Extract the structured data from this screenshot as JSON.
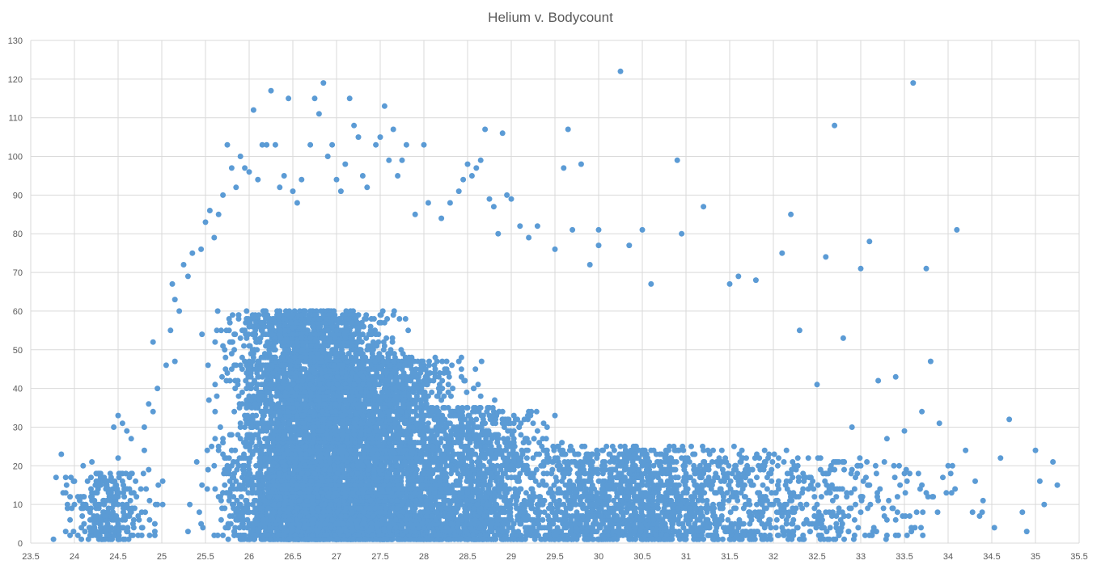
{
  "chart_data": {
    "type": "scatter",
    "title": "Helium v. Bodycount",
    "xlabel": "",
    "ylabel": "",
    "xlim": [
      23.5,
      35.5
    ],
    "ylim": [
      0,
      130
    ],
    "x_ticks": [
      23.5,
      24,
      24.5,
      25,
      25.5,
      26,
      26.5,
      27,
      27.5,
      28,
      28.5,
      29,
      29.5,
      30,
      30.5,
      31,
      31.5,
      32,
      32.5,
      33,
      33.5,
      34,
      34.5,
      35,
      35.5
    ],
    "y_ticks": [
      0,
      10,
      20,
      30,
      40,
      50,
      60,
      70,
      80,
      90,
      100,
      110,
      120,
      130
    ],
    "x_tick_labels": [
      "23.5",
      "24",
      "24.5",
      "25",
      "25.5",
      "26",
      "26.5",
      "27",
      "27.5",
      "28",
      "28.5",
      "29",
      "29.5",
      "30",
      "30.5",
      "31",
      "31.5",
      "32",
      "32.5",
      "33",
      "33.5",
      "34",
      "34.5",
      "35",
      "35.5"
    ],
    "y_tick_labels": [
      "0",
      "10",
      "20",
      "30",
      "40",
      "50",
      "60",
      "70",
      "80",
      "90",
      "100",
      "110",
      "120",
      "130"
    ],
    "grid": true,
    "legend": "none",
    "marker_color": "#5B9BD5",
    "gridline_color": "#D9D9D9",
    "series": [
      {
        "points": [
          [
            23.85,
            23
          ],
          [
            23.9,
            17
          ],
          [
            23.9,
            13
          ],
          [
            23.92,
            10
          ],
          [
            23.95,
            6
          ],
          [
            23.9,
            3
          ],
          [
            23.95,
            2
          ],
          [
            24.1,
            20
          ],
          [
            24.15,
            16
          ],
          [
            24.2,
            21
          ],
          [
            24.25,
            18
          ],
          [
            24.3,
            18
          ],
          [
            24.1,
            12
          ],
          [
            24.15,
            9
          ],
          [
            24.2,
            6
          ],
          [
            24.3,
            4
          ],
          [
            24.35,
            3
          ],
          [
            24.45,
            30
          ],
          [
            24.5,
            33
          ],
          [
            24.55,
            31
          ],
          [
            24.6,
            29
          ],
          [
            24.65,
            27
          ],
          [
            24.5,
            22
          ],
          [
            24.55,
            18
          ],
          [
            24.6,
            14
          ],
          [
            24.45,
            10
          ],
          [
            24.5,
            6
          ],
          [
            24.6,
            3
          ],
          [
            24.8,
            30
          ],
          [
            24.85,
            36
          ],
          [
            24.9,
            52
          ],
          [
            24.9,
            34
          ],
          [
            24.95,
            40
          ],
          [
            24.8,
            24
          ],
          [
            24.85,
            19
          ],
          [
            25.05,
            46
          ],
          [
            25.1,
            55
          ],
          [
            25.12,
            67
          ],
          [
            25.15,
            63
          ],
          [
            25.2,
            60
          ],
          [
            25.25,
            72
          ],
          [
            25.3,
            69
          ],
          [
            25.35,
            75
          ],
          [
            25.45,
            76
          ],
          [
            25.5,
            83
          ],
          [
            25.55,
            86
          ],
          [
            25.6,
            79
          ],
          [
            25.65,
            85
          ],
          [
            25.7,
            90
          ],
          [
            25.75,
            103
          ],
          [
            25.8,
            97
          ],
          [
            25.85,
            92
          ],
          [
            25.9,
            100
          ],
          [
            25.95,
            97
          ],
          [
            26.0,
            96
          ],
          [
            26.05,
            112
          ],
          [
            26.1,
            94
          ],
          [
            26.15,
            103
          ],
          [
            26.2,
            103
          ],
          [
            26.25,
            117
          ],
          [
            26.3,
            103
          ],
          [
            26.35,
            92
          ],
          [
            26.4,
            95
          ],
          [
            26.45,
            115
          ],
          [
            26.5,
            91
          ],
          [
            26.55,
            88
          ],
          [
            26.6,
            94
          ],
          [
            26.7,
            103
          ],
          [
            26.75,
            115
          ],
          [
            26.8,
            111
          ],
          [
            26.85,
            119
          ],
          [
            26.9,
            100
          ],
          [
            26.95,
            103
          ],
          [
            27.0,
            94
          ],
          [
            27.05,
            91
          ],
          [
            27.1,
            98
          ],
          [
            27.15,
            115
          ],
          [
            27.2,
            108
          ],
          [
            27.25,
            105
          ],
          [
            27.3,
            95
          ],
          [
            27.35,
            92
          ],
          [
            27.45,
            103
          ],
          [
            27.5,
            105
          ],
          [
            27.55,
            113
          ],
          [
            27.6,
            99
          ],
          [
            27.65,
            107
          ],
          [
            27.7,
            95
          ],
          [
            27.75,
            99
          ],
          [
            27.8,
            103
          ],
          [
            27.9,
            85
          ],
          [
            28.0,
            103
          ],
          [
            28.05,
            88
          ],
          [
            28.2,
            84
          ],
          [
            28.3,
            88
          ],
          [
            28.4,
            91
          ],
          [
            28.45,
            94
          ],
          [
            28.5,
            98
          ],
          [
            28.55,
            95
          ],
          [
            28.6,
            97
          ],
          [
            28.65,
            99
          ],
          [
            28.7,
            107
          ],
          [
            28.75,
            89
          ],
          [
            28.8,
            87
          ],
          [
            28.85,
            80
          ],
          [
            28.9,
            106
          ],
          [
            28.95,
            90
          ],
          [
            29.0,
            89
          ],
          [
            29.1,
            82
          ],
          [
            29.2,
            79
          ],
          [
            29.3,
            82
          ],
          [
            29.5,
            76
          ],
          [
            29.6,
            97
          ],
          [
            29.65,
            107
          ],
          [
            29.7,
            81
          ],
          [
            29.8,
            98
          ],
          [
            29.9,
            72
          ],
          [
            30.0,
            77
          ],
          [
            30.0,
            81
          ],
          [
            30.25,
            122
          ],
          [
            30.35,
            77
          ],
          [
            30.5,
            81
          ],
          [
            30.6,
            67
          ],
          [
            30.9,
            99
          ],
          [
            30.95,
            80
          ],
          [
            31.2,
            87
          ],
          [
            31.5,
            67
          ],
          [
            31.6,
            69
          ],
          [
            31.8,
            68
          ],
          [
            32.1,
            75
          ],
          [
            32.2,
            85
          ],
          [
            32.3,
            55
          ],
          [
            32.6,
            74
          ],
          [
            32.7,
            108
          ],
          [
            32.8,
            53
          ],
          [
            33.0,
            71
          ],
          [
            33.1,
            78
          ],
          [
            33.2,
            42
          ],
          [
            33.4,
            43
          ],
          [
            33.6,
            119
          ],
          [
            33.75,
            71
          ],
          [
            33.8,
            47
          ],
          [
            34.1,
            81
          ],
          [
            34.2,
            24
          ],
          [
            34.4,
            11
          ],
          [
            34.6,
            22
          ],
          [
            34.7,
            32
          ],
          [
            34.85,
            8
          ],
          [
            34.9,
            3
          ],
          [
            35.0,
            24
          ],
          [
            35.05,
            16
          ],
          [
            35.1,
            10
          ],
          [
            35.2,
            21
          ],
          [
            35.25,
            15
          ],
          [
            32.5,
            41
          ],
          [
            32.9,
            30
          ],
          [
            33.3,
            27
          ],
          [
            33.5,
            29
          ],
          [
            33.7,
            34
          ],
          [
            33.9,
            31
          ],
          [
            34.0,
            20
          ]
        ]
      }
    ],
    "dense_regions": [
      {
        "x_center": 26.7,
        "x_spread": 0.75,
        "y_low": 1,
        "y_high": 60,
        "count": 5200
      },
      {
        "x_center": 27.5,
        "x_spread": 0.8,
        "y_low": 1,
        "y_high": 48,
        "count": 2500
      },
      {
        "x_center": 28.5,
        "x_spread": 0.7,
        "y_low": 1,
        "y_high": 35,
        "count": 1300
      },
      {
        "x_center": 30.3,
        "x_spread": 1.4,
        "y_low": 1,
        "y_high": 25,
        "count": 1500
      },
      {
        "x_center": 32.0,
        "x_spread": 1.6,
        "y_low": 1,
        "y_high": 22,
        "count": 550
      },
      {
        "x_center": 24.4,
        "x_spread": 0.4,
        "y_low": 1,
        "y_high": 18,
        "count": 260
      }
    ]
  }
}
